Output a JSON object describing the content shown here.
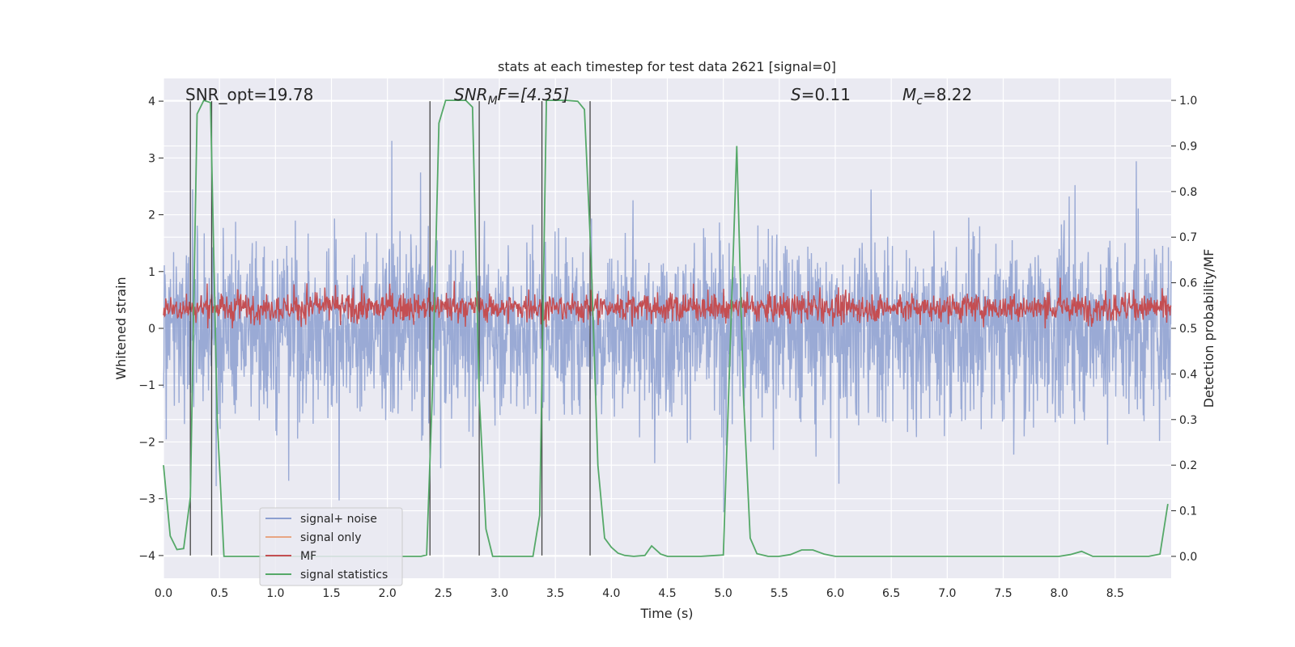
{
  "chart_data": {
    "type": "line",
    "title": "stats at each timestep for test data 2621 [signal=0]",
    "xlabel": "Time (s)",
    "ylabel": "Whitened strain",
    "y2label": "Detection probability/MF",
    "xlim": [
      0,
      9.0
    ],
    "ylim": [
      -4.4,
      4.4
    ],
    "y2lim": [
      -0.048,
      1.048
    ],
    "xticks": [
      "0.0",
      "0.5",
      "1.0",
      "1.5",
      "2.0",
      "2.5",
      "3.0",
      "3.5",
      "4.0",
      "4.5",
      "5.0",
      "5.5",
      "6.0",
      "6.5",
      "7.0",
      "7.5",
      "8.0",
      "8.5"
    ],
    "yticks": [
      "4",
      "3",
      "2",
      "1",
      "0",
      "−1",
      "−2",
      "−3",
      "−4"
    ],
    "y2ticks": [
      "1.0",
      "0.9",
      "0.8",
      "0.7",
      "0.6",
      "0.5",
      "0.4",
      "0.3",
      "0.2",
      "0.1",
      "0.0"
    ],
    "grid": true,
    "legend_position": "lower-left",
    "annotations": {
      "snr_opt": "SNR_opt=19.78",
      "snr_mf_main": "SNR",
      "snr_mf_sub": "M",
      "snr_mf_rest": "F=[4.35]",
      "s_main": "S",
      "s_rest": "=0.11",
      "mc_main": "M",
      "mc_sub": "c",
      "mc_rest": "=8.22"
    },
    "series": [
      {
        "name": "signal+ noise",
        "color": "#8c9fd0",
        "description_range": [
          -3.9,
          3.9
        ]
      },
      {
        "name": "signal only",
        "color": "#e8a582"
      },
      {
        "name": "MF",
        "color": "#c44e52",
        "axis": "right",
        "range": [
          0.5,
          0.63
        ]
      },
      {
        "name": "signal statistics",
        "color": "#55a868",
        "axis": "right",
        "x": [
          0.0,
          0.06,
          0.12,
          0.18,
          0.24,
          0.3,
          0.36,
          0.42,
          0.48,
          0.54,
          0.6,
          0.8,
          1.0,
          1.5,
          2.0,
          2.2,
          2.3,
          2.35,
          2.4,
          2.46,
          2.52,
          2.6,
          2.7,
          2.76,
          2.82,
          2.88,
          2.94,
          3.0,
          3.2,
          3.3,
          3.36,
          3.42,
          3.48,
          3.6,
          3.7,
          3.76,
          3.82,
          3.88,
          3.94,
          4.0,
          4.06,
          4.12,
          4.2,
          4.3,
          4.36,
          4.44,
          4.5,
          4.6,
          4.8,
          5.0,
          5.06,
          5.12,
          5.18,
          5.24,
          5.3,
          5.4,
          5.5,
          5.6,
          5.7,
          5.8,
          5.9,
          6.0,
          6.5,
          7.0,
          7.5,
          8.0,
          8.1,
          8.2,
          8.3,
          8.5,
          8.8,
          8.9,
          8.97
        ],
        "y": [
          0.2,
          0.045,
          0.015,
          0.017,
          0.13,
          0.97,
          1.0,
          0.995,
          0.3,
          0.0,
          0.0,
          0.0,
          0.0,
          0.0,
          0.0,
          0.0,
          0.0,
          0.003,
          0.35,
          0.95,
          1.0,
          1.0,
          1.0,
          0.985,
          0.35,
          0.06,
          0.0,
          0.0,
          0.0,
          0.0,
          0.09,
          1.0,
          1.0,
          1.0,
          0.998,
          0.98,
          0.65,
          0.2,
          0.04,
          0.02,
          0.007,
          0.002,
          0.0,
          0.002,
          0.023,
          0.005,
          0.0,
          0.0,
          0.0,
          0.003,
          0.45,
          0.9,
          0.35,
          0.04,
          0.006,
          0.0,
          0.0,
          0.004,
          0.014,
          0.014,
          0.005,
          0.0,
          0.0,
          0.0,
          0.0,
          0.0,
          0.004,
          0.011,
          0.0,
          0.0,
          0.0,
          0.005,
          0.115
        ]
      }
    ],
    "vlines_x": [
      0.24,
      0.43,
      2.38,
      2.82,
      3.38,
      3.81
    ]
  }
}
